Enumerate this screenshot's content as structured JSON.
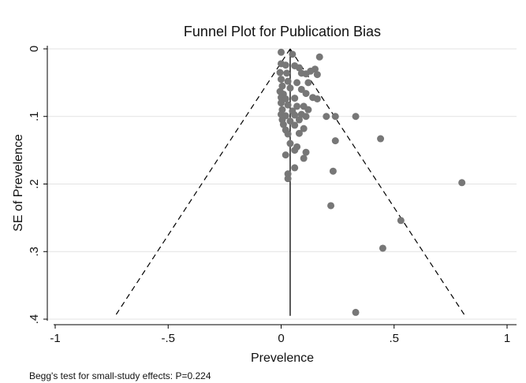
{
  "chart_data": {
    "type": "scatter",
    "title": "Funnel Plot for Publication Bias",
    "xlabel": "Prevelence",
    "ylabel": "SE of Prevelence",
    "xlim": [
      -1,
      1
    ],
    "ylim": [
      0,
      0.4
    ],
    "y_reversed": true,
    "grid": "horizontal",
    "x_ticks": [
      -1,
      -0.5,
      0,
      0.5,
      1
    ],
    "x_tick_labels": [
      "-1",
      "-.5",
      "0",
      ".5",
      "1"
    ],
    "y_ticks": [
      0,
      0.1,
      0.2,
      0.3,
      0.4
    ],
    "y_tick_labels": [
      "0",
      ".1",
      ".2",
      ".3",
      ".4"
    ],
    "pooled_estimate": 0.04,
    "pooled_line_se_range": [
      0,
      0.395
    ],
    "funnel_limits": {
      "left": [
        [
          0.04,
          0
        ],
        [
          -0.73,
          0.393
        ]
      ],
      "right": [
        [
          0.04,
          0
        ],
        [
          0.81,
          0.393
        ]
      ],
      "style": "dashed"
    },
    "points": [
      {
        "x": 0.0,
        "y": 0.005
      },
      {
        "x": 0.05,
        "y": 0.008
      },
      {
        "x": 0.17,
        "y": 0.012
      },
      {
        "x": 0.0,
        "y": 0.022
      },
      {
        "x": 0.02,
        "y": 0.024
      },
      {
        "x": 0.06,
        "y": 0.025
      },
      {
        "x": 0.08,
        "y": 0.028
      },
      {
        "x": 0.15,
        "y": 0.03
      },
      {
        "x": 0.13,
        "y": 0.033
      },
      {
        "x": -0.005,
        "y": 0.035
      },
      {
        "x": 0.025,
        "y": 0.036
      },
      {
        "x": 0.09,
        "y": 0.036
      },
      {
        "x": 0.11,
        "y": 0.037
      },
      {
        "x": 0.16,
        "y": 0.038
      },
      {
        "x": 0.0,
        "y": 0.045
      },
      {
        "x": 0.03,
        "y": 0.048
      },
      {
        "x": 0.07,
        "y": 0.05
      },
      {
        "x": 0.12,
        "y": 0.05
      },
      {
        "x": 0.005,
        "y": 0.055
      },
      {
        "x": 0.04,
        "y": 0.058
      },
      {
        "x": 0.09,
        "y": 0.06
      },
      {
        "x": -0.005,
        "y": 0.063
      },
      {
        "x": 0.01,
        "y": 0.067
      },
      {
        "x": 0.11,
        "y": 0.066
      },
      {
        "x": 0.0,
        "y": 0.072
      },
      {
        "x": 0.02,
        "y": 0.074
      },
      {
        "x": 0.06,
        "y": 0.073
      },
      {
        "x": 0.14,
        "y": 0.072
      },
      {
        "x": 0.16,
        "y": 0.074
      },
      {
        "x": 0.0,
        "y": 0.08
      },
      {
        "x": 0.03,
        "y": 0.083
      },
      {
        "x": 0.07,
        "y": 0.085
      },
      {
        "x": 0.1,
        "y": 0.085
      },
      {
        "x": 0.005,
        "y": 0.09
      },
      {
        "x": 0.05,
        "y": 0.092
      },
      {
        "x": 0.12,
        "y": 0.09
      },
      {
        "x": 0.0,
        "y": 0.097
      },
      {
        "x": 0.02,
        "y": 0.099
      },
      {
        "x": 0.06,
        "y": 0.098
      },
      {
        "x": 0.09,
        "y": 0.097
      },
      {
        "x": 0.11,
        "y": 0.1
      },
      {
        "x": 0.2,
        "y": 0.1
      },
      {
        "x": 0.24,
        "y": 0.1
      },
      {
        "x": 0.33,
        "y": 0.1
      },
      {
        "x": 0.005,
        "y": 0.105
      },
      {
        "x": 0.04,
        "y": 0.107
      },
      {
        "x": 0.08,
        "y": 0.105
      },
      {
        "x": 0.01,
        "y": 0.112
      },
      {
        "x": 0.06,
        "y": 0.113
      },
      {
        "x": 0.02,
        "y": 0.12
      },
      {
        "x": 0.1,
        "y": 0.118
      },
      {
        "x": 0.03,
        "y": 0.126
      },
      {
        "x": 0.08,
        "y": 0.125
      },
      {
        "x": 0.24,
        "y": 0.136
      },
      {
        "x": 0.44,
        "y": 0.133
      },
      {
        "x": 0.04,
        "y": 0.14
      },
      {
        "x": 0.07,
        "y": 0.145
      },
      {
        "x": 0.06,
        "y": 0.15
      },
      {
        "x": 0.11,
        "y": 0.153
      },
      {
        "x": 0.02,
        "y": 0.157
      },
      {
        "x": 0.1,
        "y": 0.162
      },
      {
        "x": 0.06,
        "y": 0.176
      },
      {
        "x": 0.23,
        "y": 0.181
      },
      {
        "x": 0.03,
        "y": 0.185
      },
      {
        "x": 0.03,
        "y": 0.192
      },
      {
        "x": 0.8,
        "y": 0.198
      },
      {
        "x": 0.22,
        "y": 0.232
      },
      {
        "x": 0.53,
        "y": 0.254
      },
      {
        "x": 0.45,
        "y": 0.295
      },
      {
        "x": 0.33,
        "y": 0.39
      }
    ],
    "footnote": "Begg's test for small-study effects: P=0.224",
    "colors": {
      "points": "#777777",
      "lines": "#000000",
      "grid": "#e3e3e3",
      "axis": "#000000"
    }
  }
}
